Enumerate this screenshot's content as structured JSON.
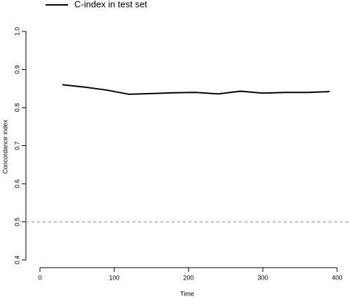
{
  "chart_data": {
    "type": "line",
    "legend_label": "C-index in test set",
    "xlabel": "Time",
    "ylabel": "Concordance index",
    "x": [
      30,
      60,
      90,
      120,
      150,
      180,
      210,
      240,
      270,
      300,
      330,
      360,
      390
    ],
    "series": [
      {
        "name": "C-index in test set",
        "color": "#000000",
        "values": [
          0.86,
          0.854,
          0.846,
          0.835,
          0.837,
          0.839,
          0.84,
          0.836,
          0.843,
          0.838,
          0.84,
          0.84,
          0.842
        ]
      }
    ],
    "reference_line": {
      "value": 0.5,
      "color": "#bbbbbb"
    },
    "xlim": [
      0,
      400
    ],
    "xticks": [
      0,
      100,
      200,
      300,
      400
    ],
    "ylim": [
      0.4,
      1
    ],
    "yticks": [
      0.4,
      0.5,
      0.6,
      0.7,
      0.8,
      0.9,
      {
        "value": 1,
        "label": "1.0"
      }
    ]
  }
}
